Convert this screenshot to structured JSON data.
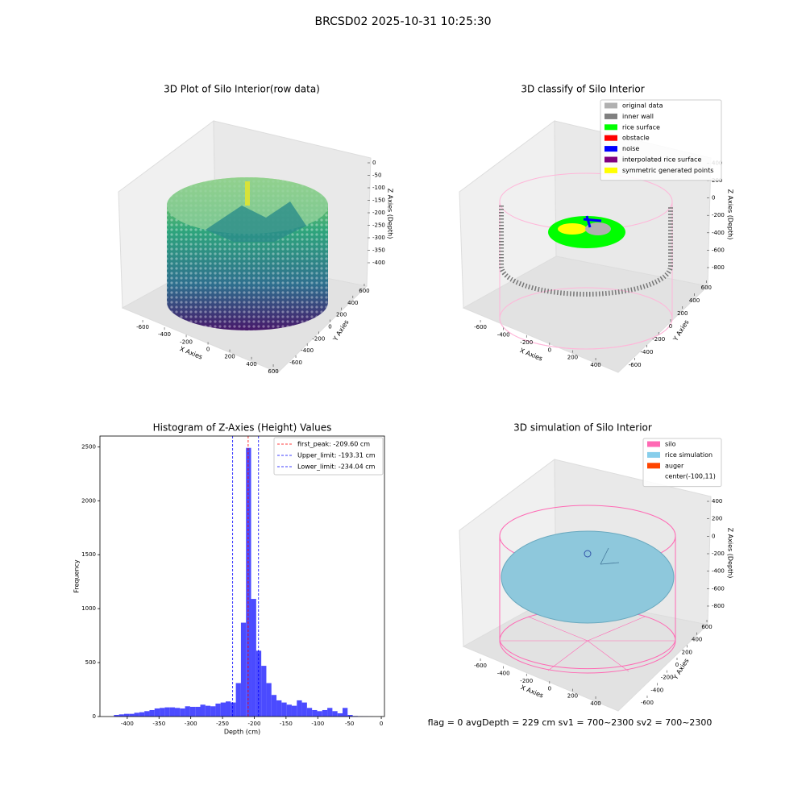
{
  "suptitle": "BRCSD02 2025-10-31 10:25:30",
  "footer": "flag = 0    avgDepth = 229 cm  sv1 = 700~2300  sv2 = 700~2300",
  "chart_data": [
    {
      "type": "scatter3d",
      "title": "3D Plot of Silo Interior(row data)",
      "xlabel": "X Axies",
      "ylabel": "Y Axies",
      "zlabel": "Z Axies (Depth)",
      "xlim": [
        -650,
        650
      ],
      "ylim": [
        -650,
        650
      ],
      "zlim": [
        -430,
        20
      ],
      "xticks": [
        -600,
        -400,
        -200,
        0,
        200,
        400,
        600
      ],
      "yticks": [
        -600,
        -400,
        -200,
        0,
        200,
        400,
        600
      ],
      "zticks": [
        0,
        -50,
        -100,
        -150,
        -200,
        -250,
        -300,
        -350,
        -400
      ]
    },
    {
      "type": "scatter3d",
      "title": "3D classify of Silo Interior",
      "xlabel": "X Axies",
      "ylabel": "Y Axies",
      "zlabel": "Z Axies (Depth)",
      "xlim": [
        -650,
        450
      ],
      "ylim": [
        -650,
        650
      ],
      "zlim": [
        -900,
        450
      ],
      "xticks": [
        -600,
        -400,
        -200,
        0,
        200,
        400
      ],
      "yticks": [
        -600,
        -400,
        -200,
        0,
        200,
        400,
        600
      ],
      "zticks": [
        400,
        200,
        0,
        -200,
        -400,
        -600,
        -800
      ],
      "legend": [
        {
          "label": "original data",
          "color": "#b0b0b0"
        },
        {
          "label": "inner wall",
          "color": "#808080"
        },
        {
          "label": "rice surface",
          "color": "#00ff00"
        },
        {
          "label": "obstacle",
          "color": "#ff0000"
        },
        {
          "label": "noise",
          "color": "#0000ff"
        },
        {
          "label": "interpolated rice surface",
          "color": "#800080"
        },
        {
          "label": "symmetric generated points",
          "color": "#ffff00"
        }
      ]
    },
    {
      "type": "histogram",
      "title": "Histogram of Z-Axies (Height) Values",
      "xlabel": "Depth (cm)",
      "ylabel": "Frequency",
      "color": "#4b4bff",
      "bins": [
        -421,
        -413,
        -405,
        -397,
        -389,
        -381,
        -373,
        -365,
        -357,
        -349,
        -341,
        -333,
        -325,
        -317,
        -309,
        -301,
        -293,
        -285,
        -277,
        -269,
        -261,
        -253,
        -245,
        -237,
        -229,
        -221,
        -213,
        -205,
        -197,
        -189,
        -181,
        -173,
        -165,
        -157,
        -149,
        -141,
        -133,
        -125,
        -117,
        -109,
        -101,
        -93,
        -85,
        -77,
        -69,
        -61,
        -53,
        -45,
        -37,
        -29,
        -21,
        -13
      ],
      "values": [
        15,
        20,
        25,
        25,
        35,
        40,
        50,
        60,
        75,
        80,
        85,
        85,
        80,
        75,
        95,
        90,
        90,
        110,
        100,
        95,
        120,
        130,
        140,
        130,
        310,
        870,
        2490,
        1090,
        610,
        470,
        310,
        200,
        150,
        130,
        110,
        100,
        150,
        130,
        80,
        60,
        50,
        60,
        80,
        50,
        30,
        80,
        15,
        5,
        3,
        2,
        1
      ],
      "xlim": [
        -443,
        5
      ],
      "ylim": [
        0,
        2600
      ],
      "xticks": [
        -400,
        -350,
        -300,
        -250,
        -200,
        -150,
        -100,
        -50,
        0
      ],
      "yticks": [
        0,
        500,
        1000,
        1500,
        2000,
        2500
      ],
      "vlines": [
        {
          "name": "first_peak: -209.60 cm",
          "value": -209.6,
          "color": "#ff0000"
        },
        {
          "name": "Upper_limit: -193.31 cm",
          "value": -193.31,
          "color": "#0000ff"
        },
        {
          "name": "Lower_limit: -234.04 cm",
          "value": -234.04,
          "color": "#0000ff"
        }
      ]
    },
    {
      "type": "surface3d",
      "title": "3D simulation of Silo Interior",
      "xlabel": "X Axies",
      "ylabel": "Y Axies",
      "zlabel": "Z Axies (Depth)",
      "xlim": [
        -650,
        450
      ],
      "ylim": [
        -650,
        650
      ],
      "zlim": [
        -900,
        450
      ],
      "xticks": [
        -600,
        -400,
        -200,
        0,
        200,
        400
      ],
      "yticks": [
        -600,
        -400,
        -200,
        0,
        200,
        400,
        600
      ],
      "zticks": [
        400,
        200,
        0,
        -200,
        -400,
        -600,
        -800
      ],
      "legend": [
        {
          "label": "silo",
          "color": "#ff69b4"
        },
        {
          "label": "rice simulation",
          "color": "#87ceeb"
        },
        {
          "label": "auger",
          "color": "#ff4500"
        },
        {
          "label": "center(-100,11)",
          "color": "#ffffff"
        }
      ]
    }
  ]
}
